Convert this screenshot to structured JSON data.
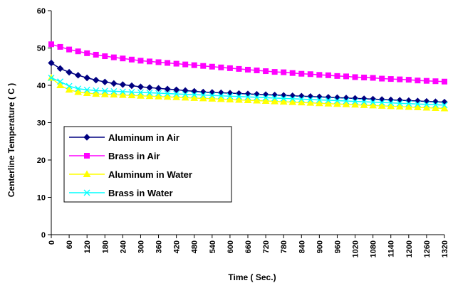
{
  "chart_data": {
    "type": "line",
    "xlabel": "Time ( Sec.)",
    "ylabel": "Centerline Temperature ( C )",
    "xlim": [
      0,
      1320
    ],
    "ylim": [
      0,
      60
    ],
    "x_ticks": [
      0,
      60,
      120,
      180,
      240,
      300,
      360,
      420,
      480,
      540,
      600,
      660,
      720,
      780,
      840,
      900,
      960,
      1020,
      1080,
      1140,
      1200,
      1260,
      1320
    ],
    "y_ticks": [
      0,
      10,
      20,
      30,
      40,
      50,
      60
    ],
    "grid": false,
    "legend_position": "lower-left",
    "x": [
      0,
      30,
      60,
      90,
      120,
      150,
      180,
      210,
      240,
      270,
      300,
      330,
      360,
      390,
      420,
      450,
      480,
      510,
      540,
      570,
      600,
      630,
      660,
      690,
      720,
      750,
      780,
      810,
      840,
      870,
      900,
      930,
      960,
      990,
      1020,
      1050,
      1080,
      1110,
      1140,
      1170,
      1200,
      1230,
      1260,
      1290,
      1320
    ],
    "series": [
      {
        "name": "Aluminum in Air",
        "color": "#000080",
        "marker": "diamond",
        "values": [
          46.0,
          44.5,
          43.5,
          42.7,
          42.0,
          41.4,
          40.9,
          40.5,
          40.2,
          39.9,
          39.6,
          39.4,
          39.2,
          39.0,
          38.8,
          38.6,
          38.4,
          38.2,
          38.1,
          38.0,
          37.9,
          37.8,
          37.7,
          37.6,
          37.5,
          37.4,
          37.3,
          37.2,
          37.1,
          37.0,
          36.9,
          36.8,
          36.7,
          36.6,
          36.5,
          36.4,
          36.3,
          36.2,
          36.1,
          36.0,
          35.9,
          35.8,
          35.7,
          35.6,
          35.5
        ]
      },
      {
        "name": "Brass in Air",
        "color": "#ff00ff",
        "marker": "square",
        "values": [
          51.0,
          50.3,
          49.6,
          49.1,
          48.6,
          48.2,
          47.8,
          47.5,
          47.2,
          46.9,
          46.6,
          46.4,
          46.2,
          46.0,
          45.8,
          45.6,
          45.4,
          45.2,
          45.0,
          44.8,
          44.6,
          44.4,
          44.2,
          44.0,
          43.8,
          43.6,
          43.5,
          43.3,
          43.1,
          43.0,
          42.8,
          42.7,
          42.5,
          42.4,
          42.2,
          42.1,
          42.0,
          41.8,
          41.7,
          41.6,
          41.5,
          41.3,
          41.2,
          41.1,
          41.0
        ]
      },
      {
        "name": "Aluminum in Water",
        "color": "#ffff00",
        "marker": "triangle",
        "values": [
          42.0,
          40.0,
          38.8,
          38.2,
          37.9,
          37.7,
          37.6,
          37.5,
          37.4,
          37.3,
          37.2,
          37.1,
          37.0,
          36.9,
          36.8,
          36.7,
          36.6,
          36.5,
          36.4,
          36.3,
          36.2,
          36.1,
          36.0,
          35.9,
          35.8,
          35.7,
          35.6,
          35.5,
          35.4,
          35.3,
          35.2,
          35.1,
          35.0,
          34.9,
          34.8,
          34.7,
          34.6,
          34.5,
          34.4,
          34.3,
          34.2,
          34.1,
          34.0,
          33.9,
          33.8
        ]
      },
      {
        "name": "Brass in Water",
        "color": "#00ffff",
        "marker": "x",
        "values": [
          42.0,
          41.0,
          39.8,
          39.1,
          38.8,
          38.6,
          38.5,
          38.4,
          38.3,
          38.2,
          38.1,
          38.0,
          37.9,
          37.8,
          37.7,
          37.6,
          37.5,
          37.4,
          37.3,
          37.2,
          37.1,
          37.0,
          36.9,
          36.8,
          36.7,
          36.6,
          36.5,
          36.4,
          36.3,
          36.2,
          36.1,
          36.0,
          35.9,
          35.8,
          35.7,
          35.6,
          35.5,
          35.4,
          35.3,
          35.2,
          35.1,
          35.0,
          34.9,
          34.8,
          34.7
        ]
      }
    ]
  }
}
